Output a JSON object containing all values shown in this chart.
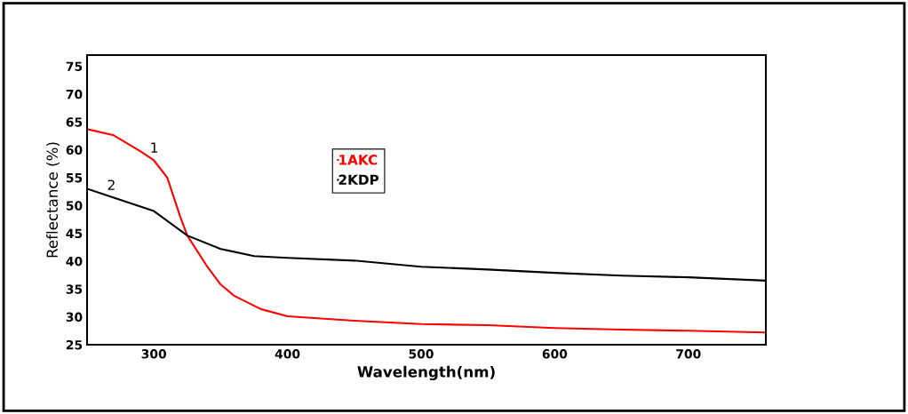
{
  "chart_data": {
    "type": "line",
    "xlabel": "Wavelength(nm)",
    "ylabel": "Reflectance (%)",
    "xlim": [
      250,
      758
    ],
    "xticks": [
      300,
      400,
      500,
      600,
      700
    ],
    "ylim": [
      25,
      77
    ],
    "yticks": [
      25,
      30,
      35,
      40,
      45,
      50,
      55,
      60,
      65,
      70,
      75
    ],
    "series": [
      {
        "name": "1AKC",
        "color": "#ff0000",
        "x": [
          250,
          270,
          290,
          300,
          310,
          320,
          325,
          340,
          350,
          360,
          380,
          400,
          450,
          500,
          550,
          600,
          650,
          700,
          758
        ],
        "values": [
          63.7,
          62.6,
          59.7,
          58.1,
          55,
          47.8,
          44.6,
          39,
          35.8,
          33.8,
          31.4,
          30.1,
          29.3,
          28.7,
          28.5,
          28.0,
          27.7,
          27.5,
          27.2
        ]
      },
      {
        "name": "2KDP",
        "color": "#000000",
        "x": [
          250,
          270,
          300,
          325,
          350,
          375,
          400,
          450,
          500,
          550,
          600,
          650,
          700,
          758
        ],
        "values": [
          53,
          51.4,
          49,
          44.6,
          42.2,
          40.9,
          40.6,
          40.1,
          39,
          38.5,
          37.9,
          37.4,
          37.1,
          36.5
        ]
      }
    ],
    "annotations": [
      {
        "text": "1",
        "x": 297,
        "y": 59.5
      },
      {
        "text": "2",
        "x": 265,
        "y": 52.8
      }
    ],
    "legend": "center",
    "grid": false,
    "marker": "none",
    "line_style": "solid"
  }
}
